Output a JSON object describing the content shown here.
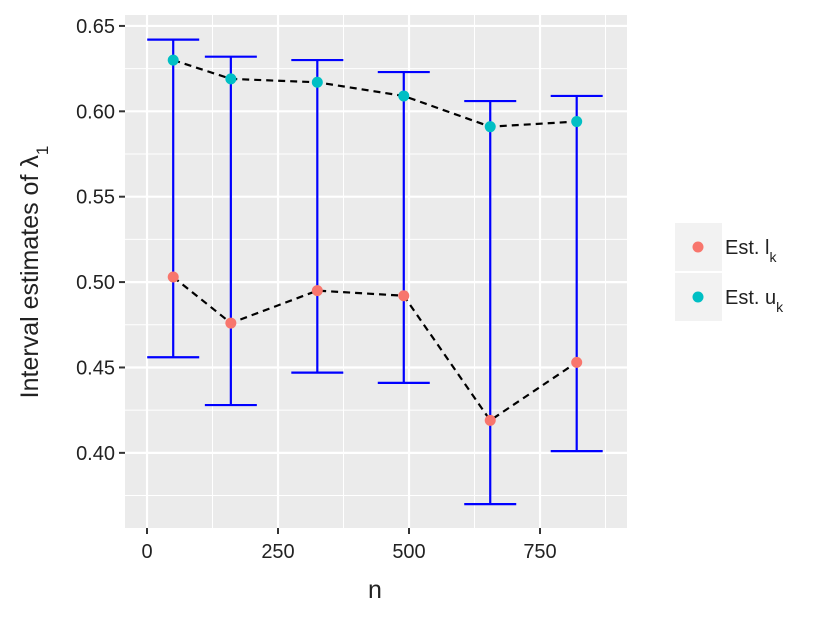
{
  "chart_data": {
    "type": "scatter",
    "x_label": "n",
    "y_label": "Interval estimates of λ",
    "y_label_sub": "1",
    "x": [
      50,
      160,
      325,
      490,
      655,
      820
    ],
    "series": [
      {
        "name": "Est. l",
        "name_sub": "k",
        "color": "#F8766D",
        "values": [
          0.503,
          0.476,
          0.495,
          0.492,
          0.419,
          0.453
        ]
      },
      {
        "name": "Est. u",
        "name_sub": "k",
        "color": "#00BFC4",
        "values": [
          0.63,
          0.619,
          0.617,
          0.609,
          0.591,
          0.594
        ]
      }
    ],
    "intervals": {
      "color": "#0000FF",
      "lower": [
        0.456,
        0.428,
        0.447,
        0.441,
        0.37,
        0.401
      ],
      "upper": [
        0.642,
        0.632,
        0.63,
        0.623,
        0.606,
        0.609
      ]
    },
    "xlim": [
      -42,
      916
    ],
    "ylim": [
      0.356,
      0.6564
    ],
    "xticks": [
      0,
      250,
      500,
      750
    ],
    "yticks": [
      {
        "value": 0.4,
        "label": "0.40"
      },
      {
        "value": 0.45,
        "label": "0.45"
      },
      {
        "value": 0.5,
        "label": "0.50"
      },
      {
        "value": 0.55,
        "label": "0.55"
      },
      {
        "value": 0.6,
        "label": "0.60"
      },
      {
        "value": 0.65,
        "label": "0.65"
      }
    ],
    "xminor": [
      125,
      375,
      625,
      875
    ],
    "yminor": [
      0.375,
      0.425,
      0.475,
      0.525,
      0.575,
      0.625
    ],
    "grid": true,
    "legend": "right"
  }
}
